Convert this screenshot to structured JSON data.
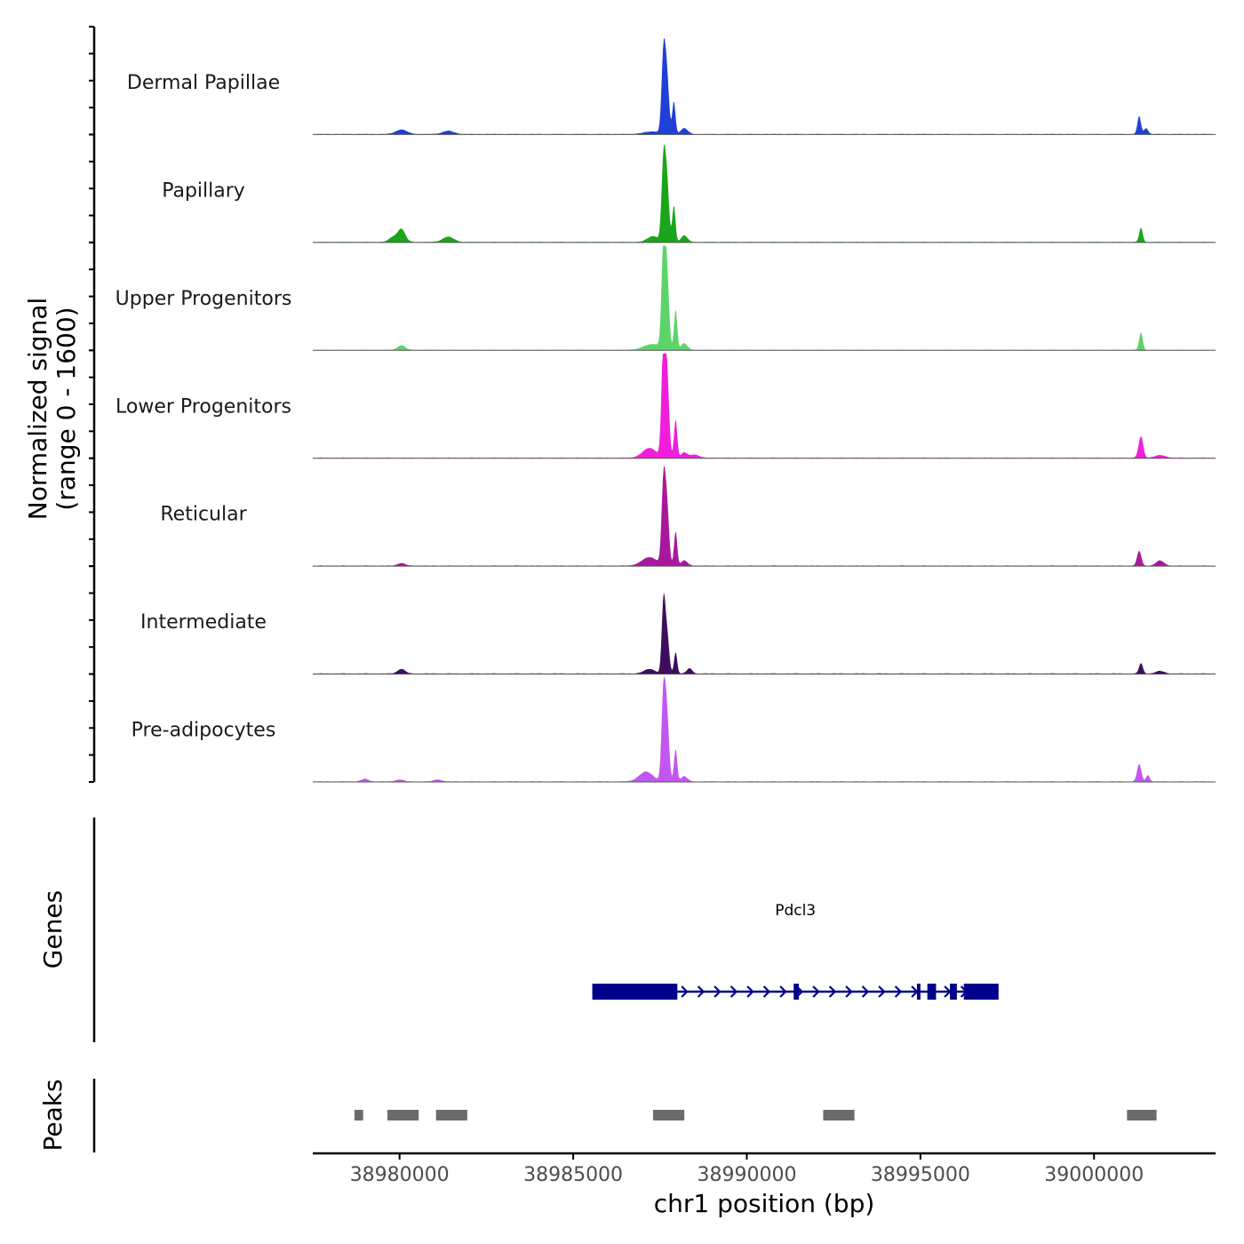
{
  "chart_data": {
    "type": "area",
    "chromosome": "chr1",
    "x_range": [
      38977500,
      39003500
    ],
    "xlabel": "chr1 position (bp)",
    "x_ticks": [
      38980000,
      38985000,
      38990000,
      38995000,
      39000000
    ],
    "x_tick_labels": [
      "38980000",
      "38985000",
      "38990000",
      "38995000",
      "39000000"
    ],
    "coverage_ylabel_line1": "Normalized signal",
    "coverage_ylabel_line2": "(range 0 - 1600)",
    "ylim": [
      0,
      1600
    ],
    "series": [
      {
        "name": "Dermal Papillae",
        "color": "#1f3fd6",
        "peaks": [
          [
            38980050,
            70,
            160
          ],
          [
            38981400,
            50,
            160
          ],
          [
            38987300,
            40,
            250
          ],
          [
            38987600,
            1190,
            55
          ],
          [
            38987700,
            850,
            60
          ],
          [
            38987900,
            500,
            45
          ],
          [
            38988200,
            90,
            100
          ],
          [
            39001300,
            280,
            50
          ],
          [
            39001500,
            90,
            60
          ]
        ]
      },
      {
        "name": "Papillary",
        "color": "#1aa51a",
        "peaks": [
          [
            38979800,
            70,
            110
          ],
          [
            38980050,
            200,
            110
          ],
          [
            38981400,
            80,
            160
          ],
          [
            38987300,
            90,
            160
          ],
          [
            38987600,
            1200,
            55
          ],
          [
            38987700,
            900,
            60
          ],
          [
            38987900,
            560,
            45
          ],
          [
            38988200,
            100,
            90
          ],
          [
            39001350,
            220,
            50
          ]
        ]
      },
      {
        "name": "Upper Progenitors",
        "color": "#5dd46a",
        "peaks": [
          [
            38980050,
            70,
            110
          ],
          [
            38987300,
            90,
            260
          ],
          [
            38987600,
            1540,
            55
          ],
          [
            38987700,
            1100,
            60
          ],
          [
            38987950,
            620,
            45
          ],
          [
            38988200,
            100,
            90
          ],
          [
            39001350,
            270,
            50
          ]
        ]
      },
      {
        "name": "Lower Progenitors",
        "color": "#f01edb",
        "peaks": [
          [
            38987200,
            150,
            200
          ],
          [
            38987600,
            1730,
            55
          ],
          [
            38987700,
            1250,
            60
          ],
          [
            38987950,
            590,
            45
          ],
          [
            38988200,
            80,
            90
          ],
          [
            38988500,
            50,
            120
          ],
          [
            39001350,
            330,
            65
          ],
          [
            39001900,
            40,
            150
          ]
        ]
      },
      {
        "name": "Reticular",
        "color": "#a8189d",
        "peaks": [
          [
            38980050,
            40,
            110
          ],
          [
            38987200,
            130,
            220
          ],
          [
            38987600,
            1230,
            55
          ],
          [
            38987700,
            880,
            60
          ],
          [
            38987950,
            530,
            45
          ],
          [
            38988200,
            80,
            90
          ],
          [
            39001300,
            230,
            60
          ],
          [
            39001900,
            80,
            110
          ]
        ]
      },
      {
        "name": "Intermediate",
        "color": "#3d0e5e",
        "peaks": [
          [
            38980050,
            70,
            110
          ],
          [
            38987200,
            70,
            160
          ],
          [
            38987600,
            1060,
            50
          ],
          [
            38987700,
            620,
            60
          ],
          [
            38987950,
            330,
            45
          ],
          [
            38988350,
            80,
            80
          ],
          [
            39001350,
            160,
            55
          ],
          [
            39001900,
            40,
            120
          ]
        ]
      },
      {
        "name": "Pre-adipocytes",
        "color": "#c157f0",
        "peaks": [
          [
            38979000,
            40,
            100
          ],
          [
            38980000,
            30,
            110
          ],
          [
            38981100,
            30,
            110
          ],
          [
            38987100,
            150,
            200
          ],
          [
            38987600,
            1340,
            55
          ],
          [
            38987700,
            970,
            60
          ],
          [
            38987950,
            500,
            45
          ],
          [
            38988200,
            80,
            90
          ],
          [
            39001300,
            270,
            60
          ],
          [
            39001550,
            100,
            50
          ]
        ]
      }
    ],
    "genes_label": "Genes",
    "gene": {
      "name": "Pdcl3",
      "color": "#00008b",
      "start": 38985550,
      "end": 38997250,
      "strand": "+",
      "exons": [
        [
          38985550,
          38988000
        ],
        [
          38991350,
          38991500
        ],
        [
          38994900,
          38995000
        ],
        [
          38995200,
          38995450
        ],
        [
          38995850,
          38996050
        ],
        [
          38996250,
          38997250
        ]
      ]
    },
    "peaks_label": "Peaks",
    "peak_regions": [
      [
        38978700,
        38978950
      ],
      [
        38979650,
        38980550
      ],
      [
        38981050,
        38981950
      ],
      [
        38987300,
        38988200
      ],
      [
        38992200,
        38993100
      ],
      [
        39000950,
        39001800
      ]
    ],
    "peak_color": "#6b6b6b"
  }
}
